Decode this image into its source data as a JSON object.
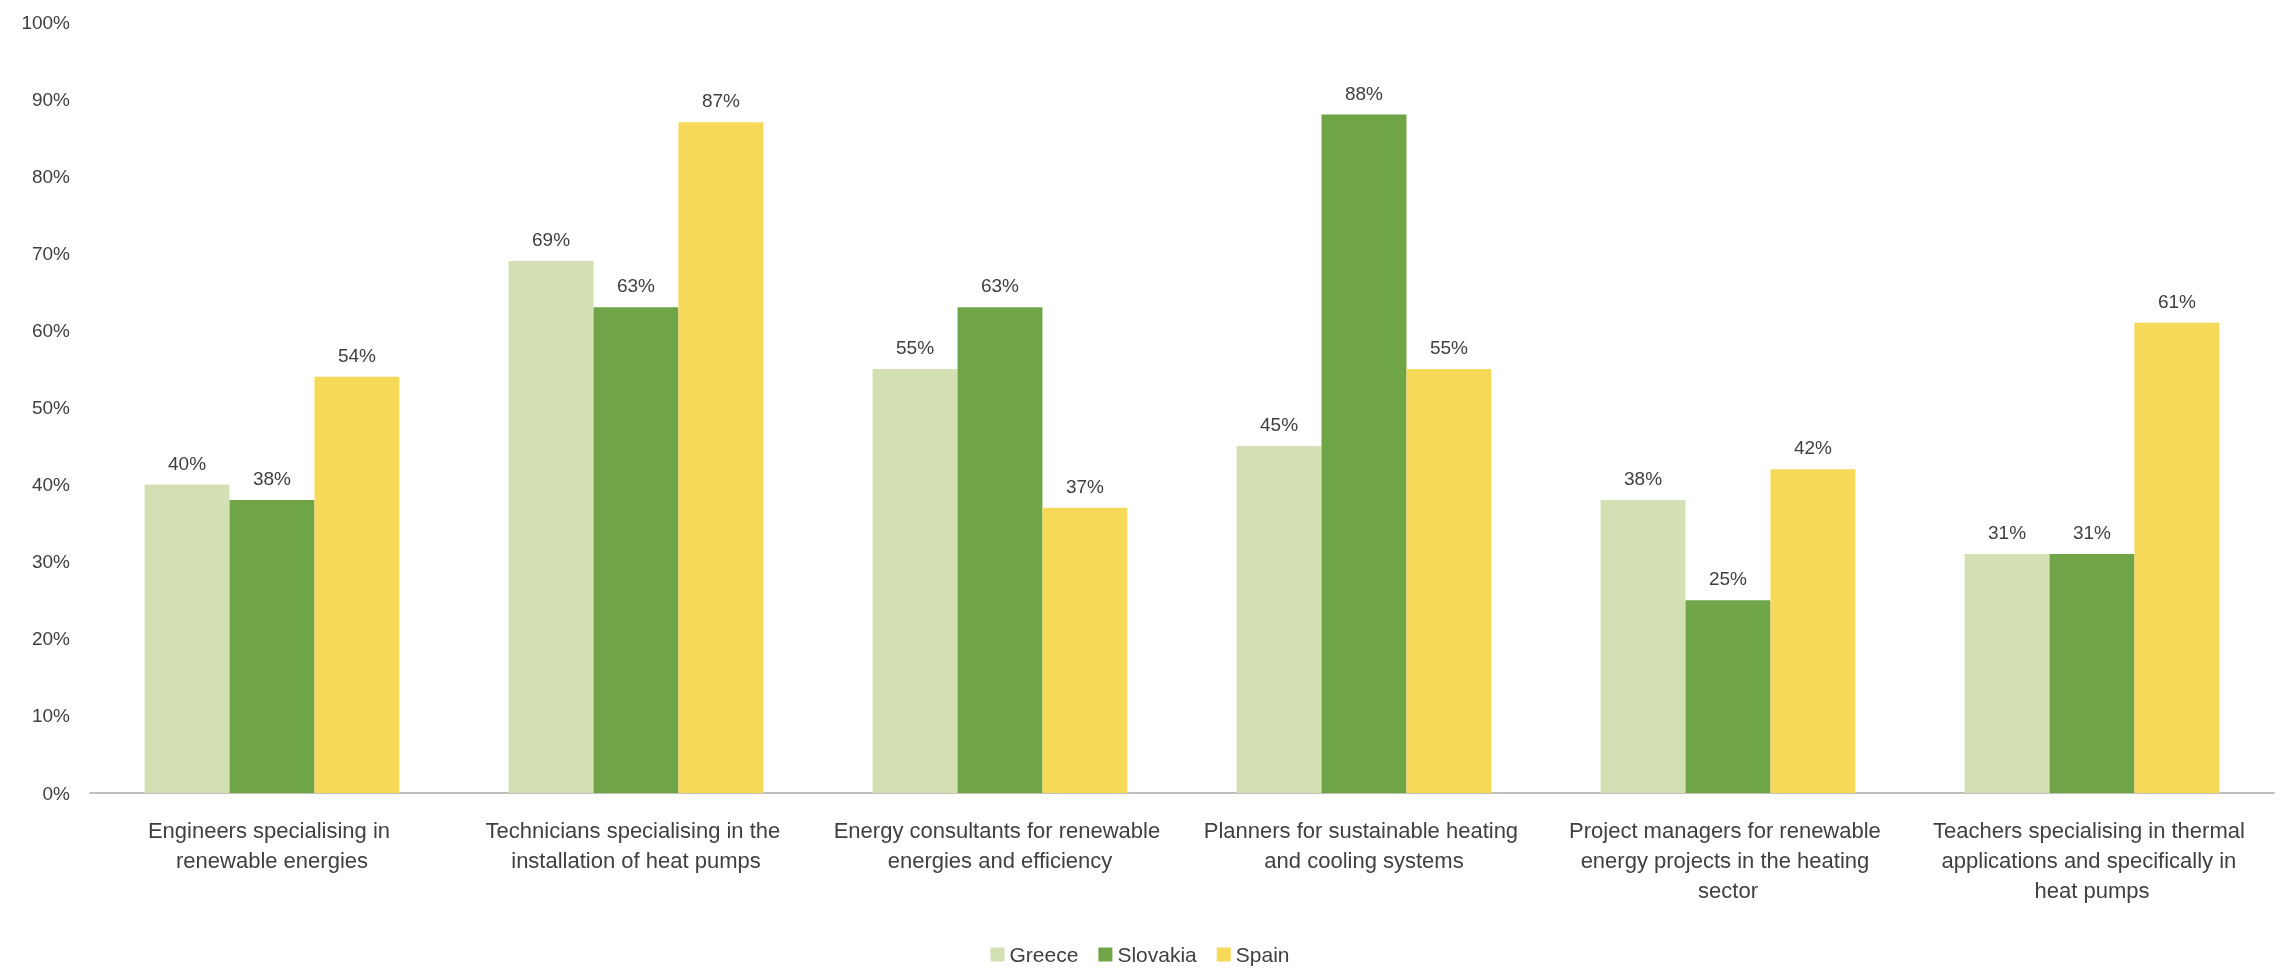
{
  "chart_data": {
    "type": "bar",
    "categories": [
      "Engineers specialising in renewable energies",
      "Technicians specialising in the installation of heat pumps",
      "Energy consultants for renewable energies and efficiency",
      "Planners for sustainable heating and cooling systems",
      "Project managers for renewable energy projects in the heating sector",
      "Teachers specialising in thermal applications and specifically in heat pumps"
    ],
    "series": [
      {
        "name": "Greece",
        "color": "#d3e0b3",
        "values": [
          40,
          69,
          55,
          45,
          38,
          31
        ],
        "value_labels": [
          "40%",
          "69%",
          "55%",
          "45%",
          "38%",
          "31%"
        ]
      },
      {
        "name": "Slovakia",
        "color": "#70a547",
        "values": [
          38,
          63,
          63,
          88,
          25,
          31
        ],
        "value_labels": [
          "38%",
          "63%",
          "63%",
          "88%",
          "25%",
          "31%"
        ]
      },
      {
        "name": "Spain",
        "color": "#f7d95a",
        "values": [
          54,
          87,
          37,
          55,
          42,
          61
        ],
        "value_labels": [
          "54%",
          "87%",
          "37%",
          "55%",
          "42%",
          "61%"
        ]
      }
    ],
    "ylim": [
      0,
      100
    ],
    "yticks": [
      {
        "value": 0,
        "label": "0%"
      },
      {
        "value": 10,
        "label": "10%"
      },
      {
        "value": 20,
        "label": "20%"
      },
      {
        "value": 30,
        "label": "30%"
      },
      {
        "value": 40,
        "label": "40%"
      },
      {
        "value": 50,
        "label": "50%"
      },
      {
        "value": 60,
        "label": "60%"
      },
      {
        "value": 70,
        "label": "70%"
      },
      {
        "value": 80,
        "label": "80%"
      },
      {
        "value": 90,
        "label": "90%"
      },
      {
        "value": 100,
        "label": "100%"
      }
    ],
    "grid": false,
    "legend": "bottom"
  }
}
